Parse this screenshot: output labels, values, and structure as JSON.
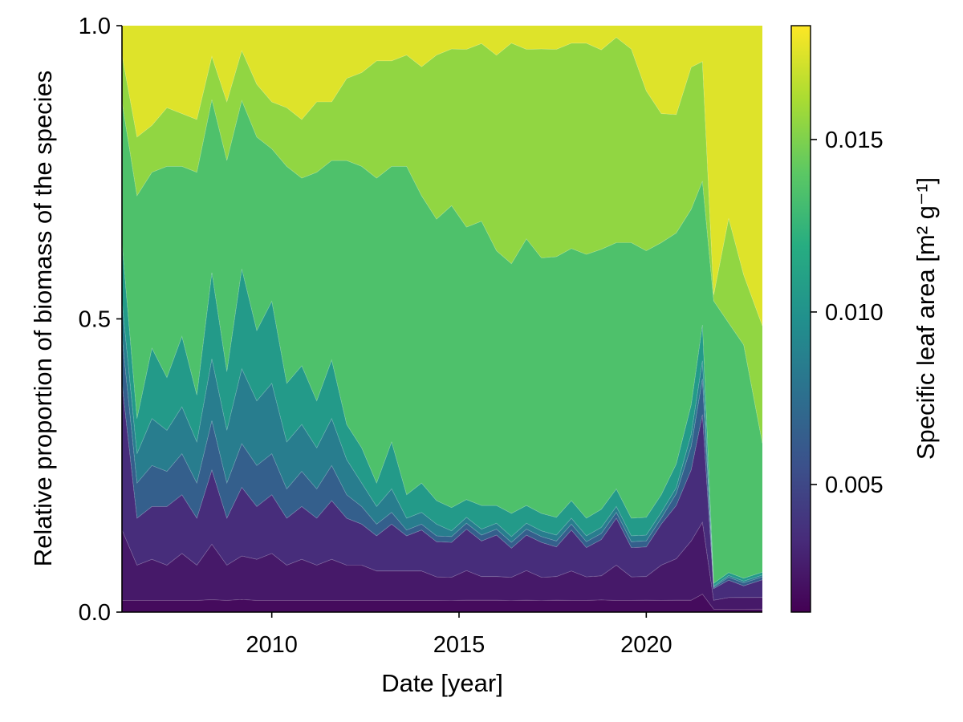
{
  "chart_data": {
    "type": "area",
    "subtype": "stacked-proportion",
    "title": "",
    "xlabel": "Date [year]",
    "ylabel": "Relative proportion of biomass of the species",
    "xlim": [
      2006.0,
      2023.1
    ],
    "ylim": [
      0,
      1
    ],
    "x_ticks": [
      2010,
      2015,
      2020
    ],
    "y_ticks": [
      0.0,
      0.5,
      1.0
    ],
    "y_tick_labels": [
      "0.0",
      "0.5",
      "1.0"
    ],
    "grid": false,
    "legend": "none",
    "colorbar": {
      "label": "Specific leaf area [m² g⁻¹]",
      "colormap": "viridis",
      "range": [
        0.0013,
        0.0183
      ],
      "ticks": [
        0.005,
        0.01,
        0.015
      ],
      "tick_labels": [
        "0.005",
        "0.010",
        "0.015"
      ]
    },
    "x": [
      2006.0,
      2006.4,
      2006.8,
      2007.2,
      2007.6,
      2008.0,
      2008.4,
      2008.8,
      2009.2,
      2009.6,
      2010.0,
      2010.4,
      2010.8,
      2011.2,
      2011.6,
      2012.0,
      2012.4,
      2012.8,
      2013.2,
      2013.6,
      2014.0,
      2014.4,
      2014.8,
      2015.2,
      2015.6,
      2016.0,
      2016.4,
      2016.8,
      2017.2,
      2017.6,
      2018.0,
      2018.4,
      2018.8,
      2019.2,
      2019.6,
      2020.0,
      2020.4,
      2020.8,
      2021.2,
      2021.5,
      2021.8,
      2022.2,
      2022.6,
      2023.1
    ],
    "series": [
      {
        "sla": 0.0018,
        "values": [
          0.02,
          0.02,
          0.02,
          0.02,
          0.02,
          0.02,
          0.02,
          0.02,
          0.02,
          0.02,
          0.02,
          0.02,
          0.02,
          0.02,
          0.02,
          0.02,
          0.02,
          0.02,
          0.02,
          0.02,
          0.02,
          0.02,
          0.02,
          0.02,
          0.02,
          0.02,
          0.02,
          0.02,
          0.02,
          0.02,
          0.02,
          0.02,
          0.02,
          0.02,
          0.02,
          0.02,
          0.02,
          0.02,
          0.02,
          0.03,
          0.005,
          0.005,
          0.005,
          0.005
        ]
      },
      {
        "sla": 0.0025,
        "values": [
          0.12,
          0.06,
          0.07,
          0.06,
          0.08,
          0.06,
          0.09,
          0.06,
          0.07,
          0.07,
          0.08,
          0.06,
          0.07,
          0.06,
          0.07,
          0.06,
          0.06,
          0.05,
          0.05,
          0.05,
          0.05,
          0.04,
          0.04,
          0.05,
          0.04,
          0.04,
          0.04,
          0.05,
          0.04,
          0.04,
          0.05,
          0.04,
          0.04,
          0.06,
          0.04,
          0.04,
          0.06,
          0.07,
          0.1,
          0.12,
          0.015,
          0.02,
          0.02,
          0.02
        ]
      },
      {
        "sla": 0.0035,
        "values": [
          0.25,
          0.08,
          0.09,
          0.1,
          0.1,
          0.08,
          0.12,
          0.08,
          0.11,
          0.09,
          0.1,
          0.08,
          0.09,
          0.08,
          0.1,
          0.08,
          0.07,
          0.06,
          0.08,
          0.06,
          0.07,
          0.06,
          0.06,
          0.07,
          0.06,
          0.07,
          0.05,
          0.06,
          0.06,
          0.05,
          0.07,
          0.05,
          0.06,
          0.08,
          0.05,
          0.05,
          0.07,
          0.09,
          0.12,
          0.18,
          0.02,
          0.03,
          0.02,
          0.03
        ]
      },
      {
        "sla": 0.0065,
        "values": [
          0.08,
          0.06,
          0.07,
          0.06,
          0.07,
          0.06,
          0.08,
          0.06,
          0.07,
          0.07,
          0.07,
          0.05,
          0.06,
          0.05,
          0.06,
          0.04,
          0.03,
          0.02,
          0.02,
          0.01,
          0.01,
          0.01,
          0.01,
          0.01,
          0.01,
          0.01,
          0.01,
          0.01,
          0.01,
          0.01,
          0.01,
          0.01,
          0.01,
          0.01,
          0.01,
          0.01,
          0.01,
          0.02,
          0.04,
          0.06,
          0.002,
          0.005,
          0.005,
          0.005
        ]
      },
      {
        "sla": 0.0085,
        "values": [
          0.06,
          0.05,
          0.08,
          0.07,
          0.08,
          0.07,
          0.1,
          0.09,
          0.12,
          0.11,
          0.12,
          0.08,
          0.08,
          0.07,
          0.08,
          0.06,
          0.04,
          0.03,
          0.04,
          0.02,
          0.02,
          0.02,
          0.01,
          0.01,
          0.01,
          0.01,
          0.01,
          0.01,
          0.01,
          0.01,
          0.01,
          0.01,
          0.01,
          0.01,
          0.01,
          0.01,
          0.01,
          0.01,
          0.02,
          0.03,
          0.002,
          0.003,
          0.003,
          0.003
        ]
      },
      {
        "sla": 0.0105,
        "values": [
          0.1,
          0.06,
          0.12,
          0.09,
          0.12,
          0.08,
          0.14,
          0.1,
          0.16,
          0.12,
          0.14,
          0.1,
          0.1,
          0.08,
          0.1,
          0.06,
          0.06,
          0.04,
          0.08,
          0.04,
          0.05,
          0.04,
          0.04,
          0.03,
          0.04,
          0.03,
          0.04,
          0.03,
          0.03,
          0.03,
          0.03,
          0.03,
          0.03,
          0.03,
          0.03,
          0.03,
          0.03,
          0.04,
          0.05,
          0.06,
          0.005,
          0.005,
          0.005,
          0.005
        ]
      },
      {
        "sla": 0.0135,
        "values": [
          0.24,
          0.38,
          0.3,
          0.36,
          0.29,
          0.38,
          0.28,
          0.36,
          0.27,
          0.33,
          0.26,
          0.37,
          0.32,
          0.39,
          0.34,
          0.45,
          0.48,
          0.52,
          0.47,
          0.56,
          0.49,
          0.48,
          0.52,
          0.46,
          0.48,
          0.43,
          0.43,
          0.45,
          0.44,
          0.44,
          0.43,
          0.45,
          0.43,
          0.42,
          0.47,
          0.45,
          0.43,
          0.39,
          0.33,
          0.24,
          0.48,
          0.43,
          0.4,
          0.22
        ]
      },
      {
        "sla": 0.0155,
        "values": [
          0.08,
          0.1,
          0.08,
          0.1,
          0.09,
          0.09,
          0.07,
          0.1,
          0.08,
          0.09,
          0.08,
          0.1,
          0.1,
          0.12,
          0.1,
          0.14,
          0.16,
          0.2,
          0.18,
          0.19,
          0.22,
          0.28,
          0.27,
          0.3,
          0.3,
          0.33,
          0.38,
          0.32,
          0.36,
          0.35,
          0.35,
          0.36,
          0.33,
          0.35,
          0.33,
          0.27,
          0.22,
          0.2,
          0.24,
          0.2,
          0.01,
          0.18,
          0.12,
          0.2
        ]
      },
      {
        "sla": 0.0175,
        "values": [
          0.05,
          0.19,
          0.17,
          0.14,
          0.15,
          0.16,
          0.05,
          0.13,
          0.04,
          0.1,
          0.13,
          0.14,
          0.16,
          0.13,
          0.13,
          0.09,
          0.08,
          0.06,
          0.06,
          0.05,
          0.07,
          0.05,
          0.04,
          0.04,
          0.03,
          0.05,
          0.03,
          0.04,
          0.04,
          0.04,
          0.03,
          0.03,
          0.04,
          0.02,
          0.04,
          0.11,
          0.15,
          0.15,
          0.07,
          0.06,
          0.458,
          0.332,
          0.427,
          0.512
        ]
      }
    ]
  }
}
